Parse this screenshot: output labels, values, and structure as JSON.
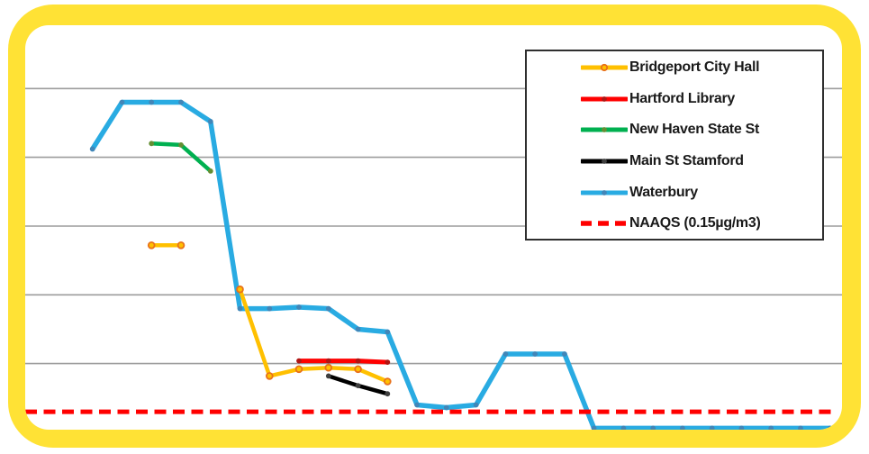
{
  "frame": {
    "border_color": "#FFE235",
    "plot_background": "#FFFFFF"
  },
  "legend": {
    "position": "top-right",
    "border_color": "#2F2F2F"
  },
  "chart_data": {
    "type": "line",
    "title": "",
    "xlabel": "",
    "ylabel": "",
    "x_axis": {
      "tick_labels_visible": false,
      "note": "category axis cropped by frame; 28 evenly spaced positions, labels not shown"
    },
    "y_axis": {
      "tick_labels_visible": false,
      "unit": "µg/m3",
      "ylim": [
        0,
        2.95
      ],
      "grid": true,
      "gridline_values": [
        0.5,
        1.0,
        1.5,
        2.0,
        2.5
      ],
      "gridline_color": "#9C9C9C"
    },
    "reference_line": {
      "label": "NAAQS (0.15µg/m3)",
      "value": 0.15,
      "color": "#FF0000",
      "style": "dashed"
    },
    "series": [
      {
        "name": "Waterbury",
        "color": "#29ABE2",
        "marker": "dot",
        "marker_color": "#4186B8",
        "line_width": 5.5,
        "segments": [
          [
            [
              3,
              2.06
            ],
            [
              4,
              2.4
            ],
            [
              5,
              2.4
            ],
            [
              6,
              2.4
            ],
            [
              7,
              2.26
            ],
            [
              8,
              0.9
            ],
            [
              9,
              0.9
            ],
            [
              10,
              0.91
            ],
            [
              11,
              0.9
            ],
            [
              12,
              0.75
            ],
            [
              13,
              0.73
            ],
            [
              14,
              0.2
            ],
            [
              15,
              0.18
            ],
            [
              16,
              0.2
            ],
            [
              17,
              0.57
            ],
            [
              18,
              0.57
            ],
            [
              19,
              0.57
            ],
            [
              20,
              0.03
            ],
            [
              21,
              0.03
            ],
            [
              22,
              0.03
            ],
            [
              23,
              0.03
            ],
            [
              24,
              0.03
            ],
            [
              25,
              0.03
            ],
            [
              26,
              0.03
            ],
            [
              27,
              0.03
            ],
            [
              28,
              0.03
            ]
          ]
        ]
      },
      {
        "name": "New Haven State St",
        "color": "#00B050",
        "marker": "dot",
        "marker_color": "#648E33",
        "line_width": 4.5,
        "segments": [
          [
            [
              5,
              2.1
            ],
            [
              6,
              2.09
            ],
            [
              7,
              1.9
            ]
          ]
        ]
      },
      {
        "name": "Main St Stamford",
        "color": "#000000",
        "marker": "dot",
        "marker_color": "#3f3f3f",
        "line_width": 4.5,
        "segments": [
          [
            [
              11,
              0.41
            ],
            [
              12,
              0.34
            ],
            [
              13,
              0.28
            ]
          ]
        ]
      },
      {
        "name": "Hartford Library",
        "color": "#FF0000",
        "marker": "dot",
        "marker_color": "#B01513",
        "line_width": 5,
        "segments": [
          [
            [
              10,
              0.52
            ],
            [
              11,
              0.52
            ],
            [
              12,
              0.52
            ],
            [
              13,
              0.51
            ]
          ]
        ]
      },
      {
        "name": "Bridgeport City Hall",
        "color": "#FFC000",
        "marker": "open-circle",
        "marker_color": "#E8711A",
        "line_width": 4.5,
        "segments": [
          [
            [
              5,
              1.36
            ],
            [
              6,
              1.36
            ]
          ],
          [
            [
              8,
              1.04
            ],
            [
              9,
              0.41
            ],
            [
              10,
              0.46
            ],
            [
              11,
              0.47
            ],
            [
              12,
              0.46
            ],
            [
              13,
              0.37
            ]
          ]
        ]
      }
    ],
    "legend_order": [
      "Bridgeport City Hall",
      "Hartford Library",
      "New Haven State St",
      "Main St Stamford",
      "Waterbury",
      "NAAQS (0.15µg/m3)"
    ],
    "legend_position": "top-right"
  }
}
